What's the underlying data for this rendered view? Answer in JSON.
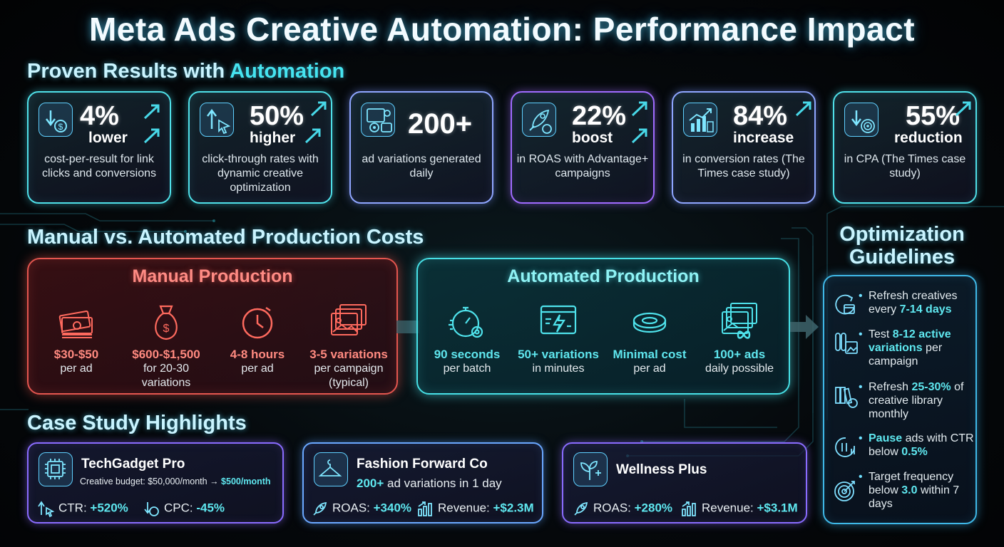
{
  "title": "Meta Ads Creative Automation: Performance Impact",
  "results_section": {
    "title_prefix": "Proven Results with ",
    "title_accent": "Automation"
  },
  "stats": [
    {
      "value": "4%",
      "unit": "lower",
      "desc": "cost-per-result for link clicks and conversions",
      "icon": "down-arrow-coin-icon"
    },
    {
      "value": "50%",
      "unit": "higher",
      "desc": "click-through rates with dynamic creative optimization",
      "icon": "cursor-up-arrow-icon"
    },
    {
      "value": "200+",
      "unit": "",
      "desc": "ad variations generated daily",
      "icon": "automation-gears-icon"
    },
    {
      "value": "22%",
      "unit": "boost",
      "desc": "in ROAS with Advantage+ campaigns",
      "icon": "rocket-coin-icon"
    },
    {
      "value": "84%",
      "unit": "increase",
      "desc": "in conversion rates (The Times case study)",
      "icon": "bar-chart-growth-icon"
    },
    {
      "value": "55%",
      "unit": "reduction",
      "desc": "in CPA (The Times case study)",
      "icon": "target-down-arrow-icon"
    }
  ],
  "costs_section": {
    "title": "Manual vs. Automated Production Costs"
  },
  "manual": {
    "title": "Manual Production",
    "items": [
      {
        "strong": "$30-$50",
        "desc": "per ad",
        "icon": "cash-stack-icon"
      },
      {
        "strong": "$600-$1,500",
        "desc": "for 20-30 variations",
        "icon": "money-bag-icon"
      },
      {
        "strong": "4-8 hours",
        "desc": "per ad",
        "icon": "clock-icon"
      },
      {
        "strong": "3-5 variations",
        "desc": "per campaign (typical)",
        "icon": "image-stack-icon"
      }
    ]
  },
  "automated": {
    "title": "Automated Production",
    "items": [
      {
        "strong": "90 seconds",
        "desc": "per batch",
        "icon": "stopwatch-gear-icon"
      },
      {
        "strong": "50+ variations",
        "desc": "in minutes",
        "icon": "lightning-window-icon"
      },
      {
        "strong": "Minimal cost",
        "desc": "per ad",
        "icon": "coin-icon"
      },
      {
        "strong": "100+ ads",
        "desc": "daily possible",
        "icon": "infinity-images-icon"
      }
    ]
  },
  "guidelines": {
    "title_line1": "Optimization",
    "title_line2": "Guidelines",
    "items": [
      {
        "pre": "Refresh creatives every ",
        "hl": "7-14 days",
        "post": "",
        "icon": "refresh-calendar-icon"
      },
      {
        "pre": "Test ",
        "hl": "8-12 active variations",
        "post": " per campaign",
        "icon": "test-tubes-icon"
      },
      {
        "pre": "Refresh ",
        "hl": "25-30%",
        "post": " of creative library monthly",
        "icon": "library-refresh-icon"
      },
      {
        "pre": "",
        "hl": "Pause",
        "post": " ads with CTR below ",
        "hl2": "0.5%",
        "icon": "pause-chart-icon"
      },
      {
        "pre": "Target frequency below ",
        "hl": "3.0",
        "post": " within 7 days",
        "icon": "target-icon"
      }
    ]
  },
  "case_section": {
    "title": "Case Study Highlights"
  },
  "cases": [
    {
      "name": "TechGadget Pro",
      "sub_pre": "Creative budget: $50,000/month → ",
      "sub_hl": "$500/month",
      "metrics": [
        {
          "label": "CTR: ",
          "value": "+520%",
          "icon": "cursor-up-icon"
        },
        {
          "label": "CPC: ",
          "value": "-45%",
          "icon": "coin-down-icon"
        }
      ],
      "icon": "chip-icon"
    },
    {
      "name": "Fashion Forward Co",
      "sub_hl": "200+",
      "sub_post": " ad variations in 1 day",
      "metrics": [
        {
          "label": "ROAS: ",
          "value": "+340%",
          "icon": "rocket-icon"
        },
        {
          "label": "Revenue: ",
          "value": "+$2.3M",
          "icon": "bar-chart-icon"
        }
      ],
      "icon": "hanger-icon"
    },
    {
      "name": "Wellness Plus",
      "metrics": [
        {
          "label": "ROAS: ",
          "value": "+280%",
          "icon": "rocket-icon"
        },
        {
          "label": "Revenue: ",
          "value": "+$3.1M",
          "icon": "bar-chart-icon"
        }
      ],
      "icon": "plant-cross-icon"
    }
  ]
}
